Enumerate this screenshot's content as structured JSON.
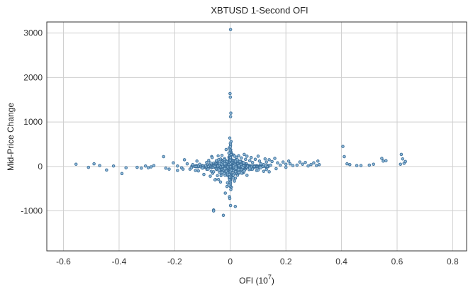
{
  "chart_data": {
    "type": "scatter",
    "title": "XBTUSD 1-Second OFI",
    "xlabel": "OFI (10",
    "xlabel_exp": "7",
    "xlabel_close": ")",
    "ylabel": "Mid-Price Change",
    "xlim": [
      -0.66,
      0.85
    ],
    "ylim": [
      -1900,
      3250
    ],
    "xticks": [
      -0.6,
      -0.4,
      -0.2,
      0,
      0.2,
      0.4,
      0.6,
      0.8
    ],
    "xtick_labels": [
      "-0.6",
      "-0.4",
      "-0.2",
      "0",
      "0.2",
      "0.4",
      "0.6",
      "0.8"
    ],
    "yticks": [
      -1000,
      0,
      1000,
      2000,
      3000
    ],
    "ytick_labels": [
      "-1000",
      "0",
      "1000",
      "2000",
      "3000"
    ],
    "grid": true,
    "marker_color": "#8fb9d8",
    "marker_edge": "#3c6f9a",
    "series": [
      {
        "x": [
          0.001,
          -0.001,
          0.0,
          0.002,
          0.001,
          -0.002,
          0.003,
          0.0,
          0.001,
          0.0,
          -0.005,
          -0.012,
          0.002,
          -0.018,
          -0.003,
          -0.002,
          0.001,
          0.018,
          -0.06,
          -0.025,
          -0.06,
          -0.555,
          -0.51,
          -0.49,
          -0.47,
          -0.445,
          -0.42,
          -0.39,
          -0.375,
          -0.335,
          -0.32,
          -0.305,
          -0.295,
          -0.285,
          -0.275,
          -0.24,
          -0.232,
          -0.22,
          -0.205,
          -0.19,
          -0.175,
          -0.165,
          -0.155,
          -0.145,
          -0.135,
          -0.125,
          -0.12,
          -0.11,
          -0.095,
          -0.085,
          -0.072,
          -0.065,
          -0.055,
          -0.042,
          -0.035,
          -0.02,
          0.015,
          0.025,
          0.03,
          0.035,
          0.04,
          0.05,
          0.055,
          0.06,
          0.07,
          0.075,
          0.08,
          0.09,
          0.1,
          0.105,
          0.11,
          0.12,
          0.125,
          0.13,
          0.14,
          0.145,
          0.15,
          0.16,
          0.17,
          0.18,
          0.19,
          0.2,
          0.21,
          0.215,
          0.225,
          0.24,
          0.25,
          0.26,
          0.27,
          0.28,
          0.29,
          0.3,
          0.31,
          0.315,
          0.32,
          0.405,
          0.41,
          0.42,
          0.43,
          0.455,
          0.47,
          0.5,
          0.515,
          0.545,
          0.55,
          0.56,
          0.615,
          0.62,
          0.625,
          0.63,
          0.612,
          0.02,
          0.03,
          0.045,
          0.05,
          0.07,
          0.08,
          0.095,
          0.11,
          0.13,
          0.14,
          0.165,
          0.2,
          0.04,
          0.06,
          0.1,
          0.12,
          -0.02,
          -0.04,
          -0.06,
          -0.08,
          -0.1,
          -0.115,
          -0.14,
          -0.17,
          -0.19,
          -0.005,
          -0.015,
          -0.03,
          -0.05,
          0.01,
          0.015,
          -0.01
        ],
        "y": [
          3080,
          1640,
          1560,
          1200,
          1120,
          640,
          560,
          520,
          480,
          440,
          -420,
          -450,
          -520,
          -600,
          -680,
          -720,
          -880,
          -900,
          -980,
          -1100,
          -1000,
          50,
          -20,
          60,
          20,
          -80,
          10,
          -160,
          -30,
          -20,
          -40,
          10,
          -30,
          -10,
          20,
          220,
          -40,
          -60,
          80,
          10,
          -30,
          150,
          60,
          -60,
          40,
          -90,
          120,
          50,
          -180,
          90,
          -220,
          200,
          -300,
          150,
          -350,
          60,
          230,
          150,
          240,
          110,
          190,
          270,
          160,
          230,
          130,
          200,
          90,
          160,
          230,
          120,
          60,
          40,
          170,
          100,
          150,
          30,
          110,
          180,
          80,
          30,
          100,
          50,
          120,
          60,
          20,
          30,
          100,
          50,
          90,
          10,
          40,
          80,
          20,
          120,
          40,
          450,
          220,
          60,
          40,
          20,
          20,
          30,
          50,
          180,
          120,
          130,
          270,
          170,
          70,
          110,
          50,
          -40,
          -70,
          -20,
          -100,
          -40,
          -60,
          -90,
          -30,
          -70,
          -120,
          -50,
          -20,
          -150,
          -200,
          -80,
          -110,
          -50,
          -80,
          -120,
          -60,
          -40,
          -100,
          -30,
          -60,
          -90,
          300,
          380,
          250,
          130,
          -260,
          -330,
          -370
        ]
      }
    ]
  }
}
